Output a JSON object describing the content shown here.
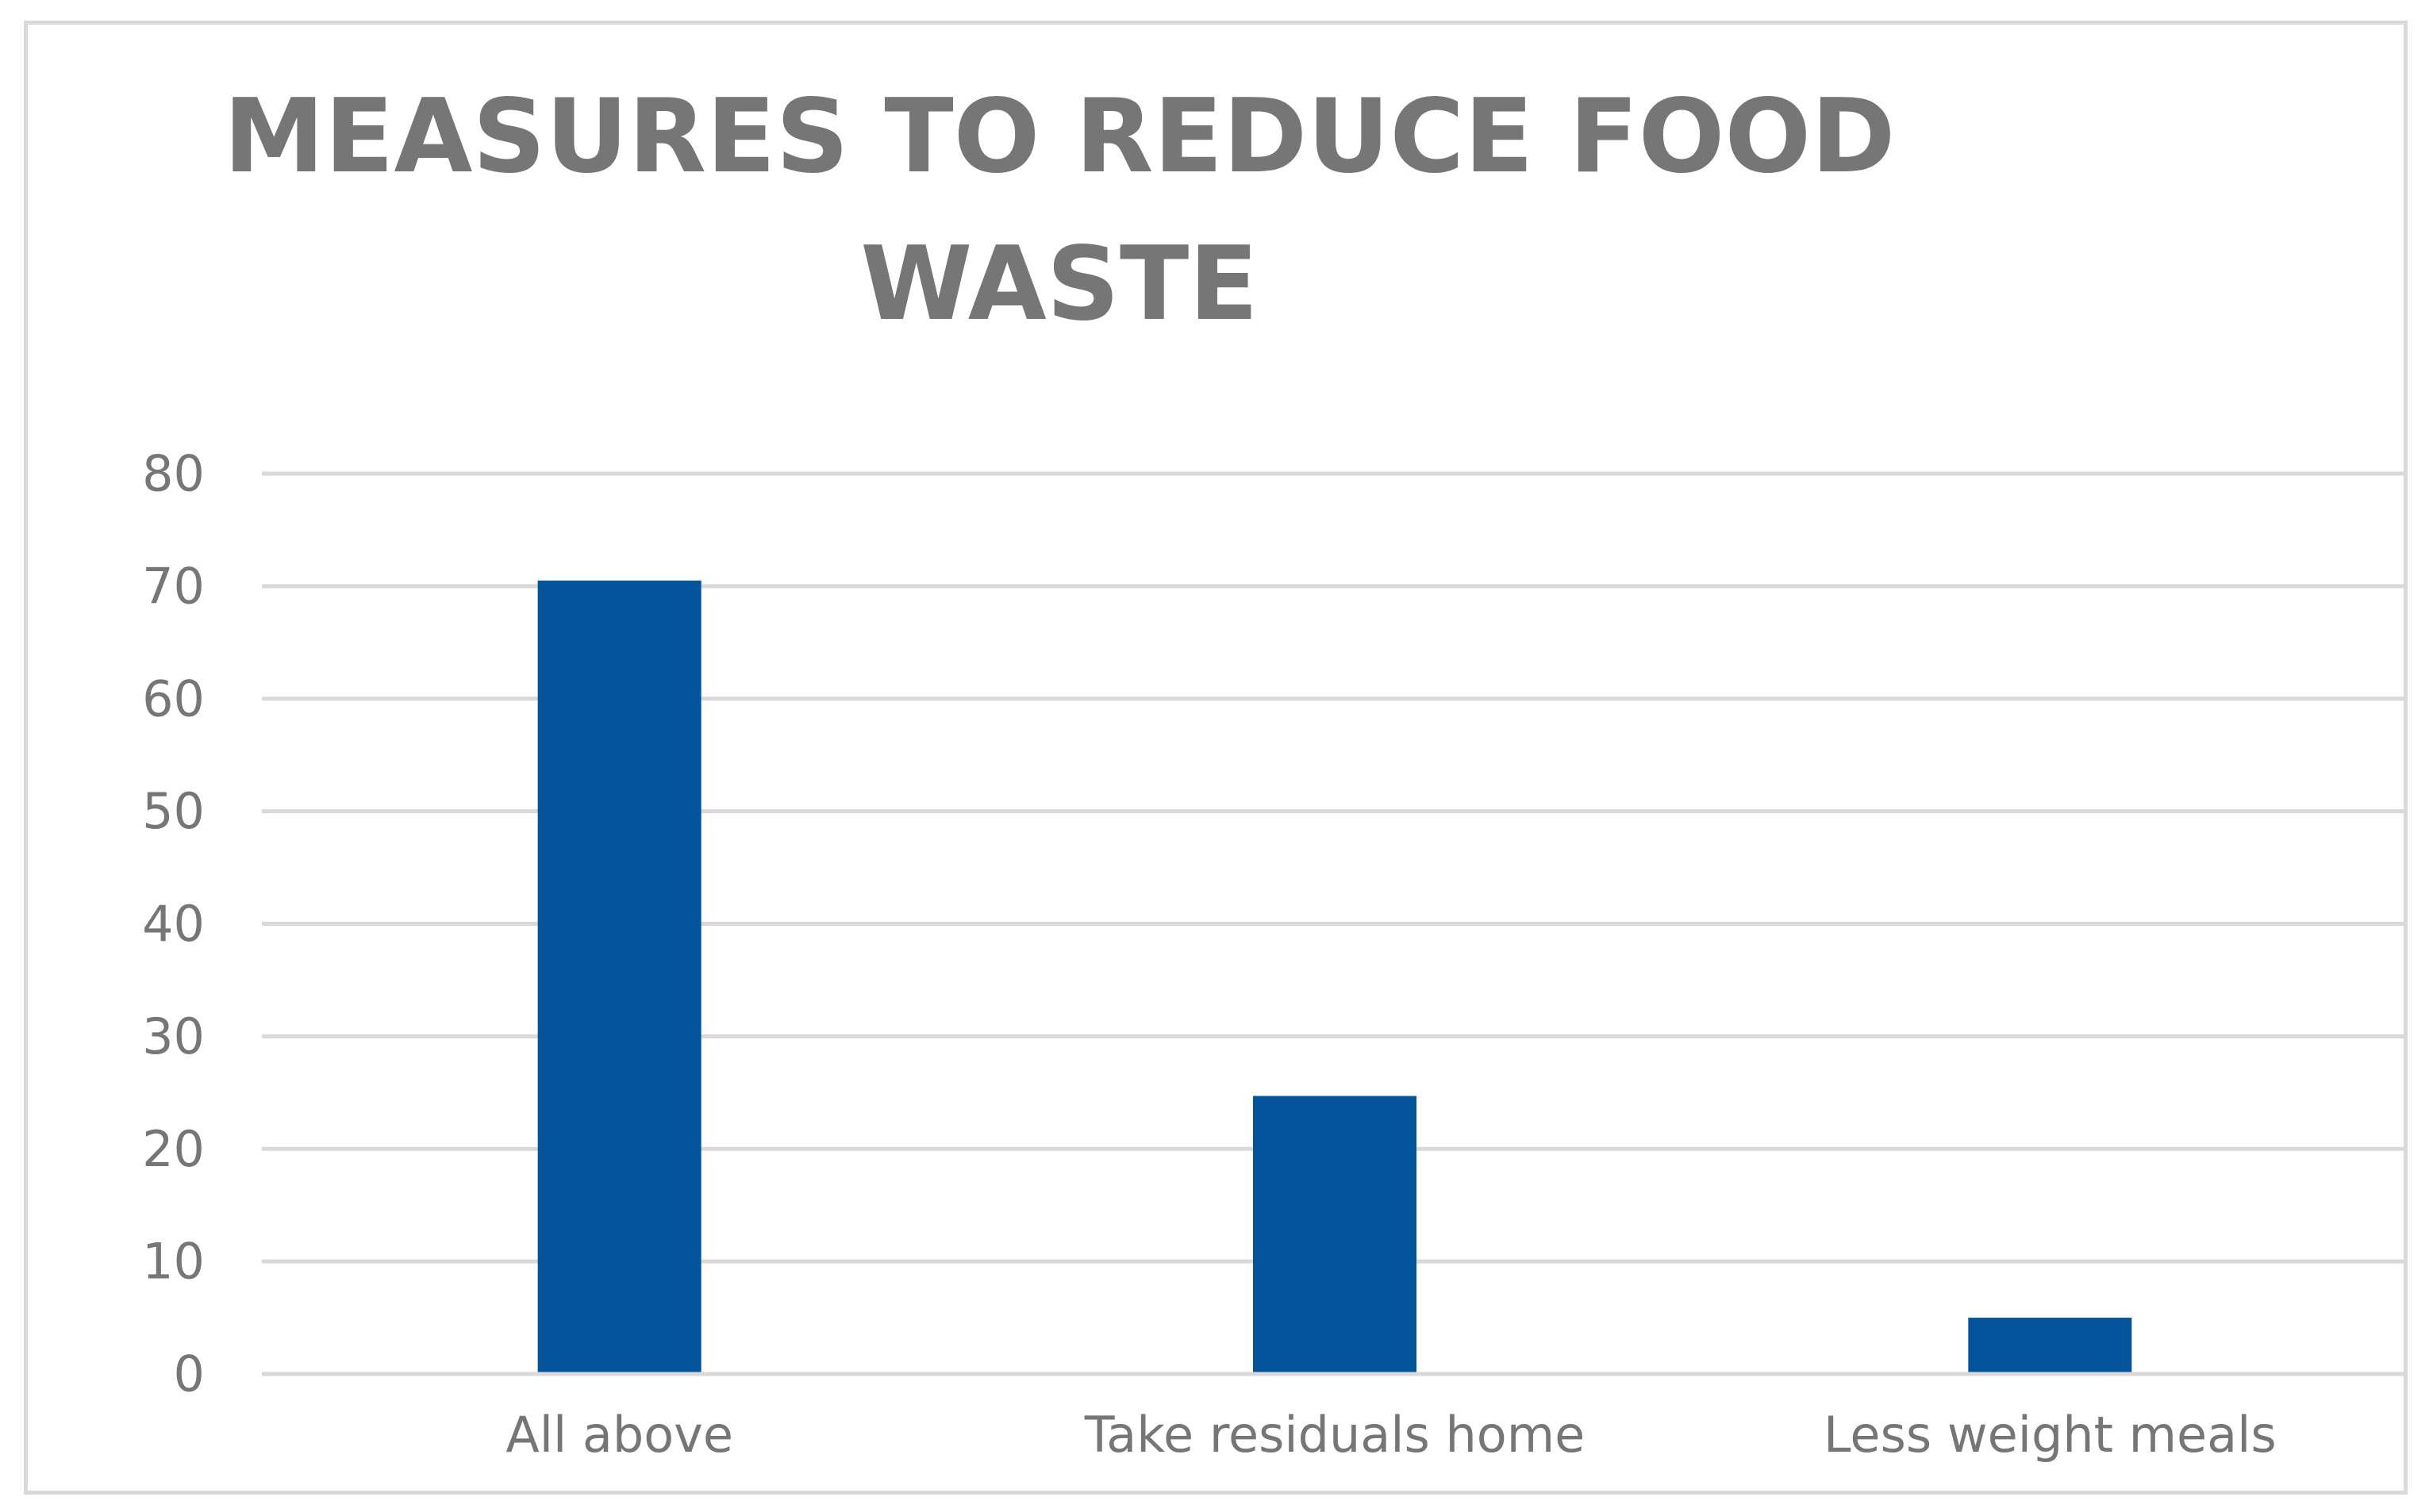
{
  "chart_data": {
    "type": "bar",
    "title": "MEASURES TO REDUCE FOOD WASTE",
    "categories": [
      "All above",
      "Take residuals home",
      "Less weight meals"
    ],
    "series": [
      {
        "values": [
          70.5,
          24.7,
          5.0
        ]
      }
    ],
    "ylim": [
      0,
      80
    ],
    "yticks": [
      "0",
      "10",
      "20",
      "30",
      "40",
      "50",
      "60",
      "70",
      "80"
    ],
    "xlabel": "",
    "ylabel": "",
    "grid": true,
    "legend": "none",
    "colors": {
      "bar": "#02549b",
      "gridline": "#d9d9d9",
      "text": "#767676",
      "frame": "#d9d9d9"
    }
  }
}
